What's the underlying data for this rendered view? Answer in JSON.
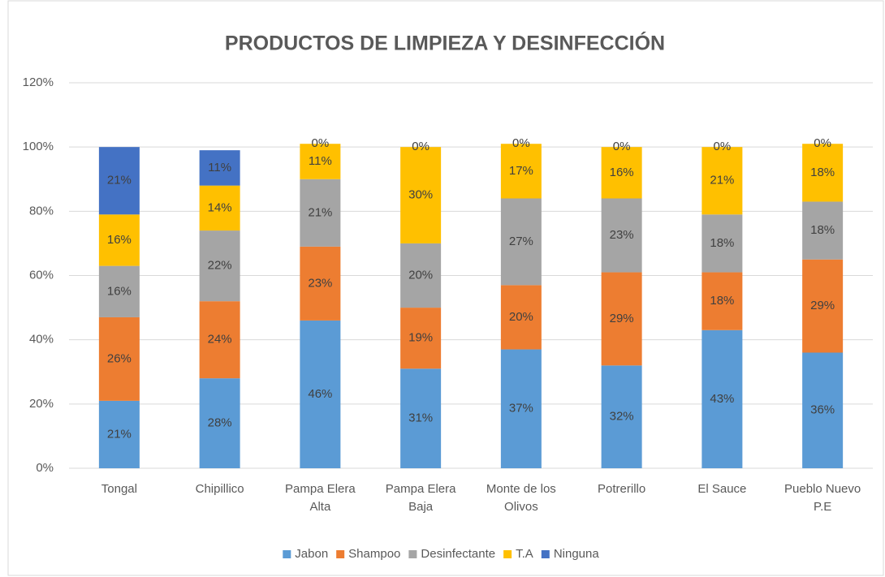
{
  "chart_data": {
    "type": "stacked_bar",
    "title": "PRODUCTOS DE LIMPIEZA Y DESINFECCIÓN",
    "categories": [
      "Tongal",
      "Chipillico",
      "Pampa Elera Alta",
      "Pampa Elera Baja",
      "Monte de los Olivos",
      "Potrerillo",
      "El Sauce",
      "Pueblo Nuevo P.E"
    ],
    "series": [
      {
        "name": "Jabon",
        "color": "#5b9bd5",
        "values": [
          21,
          28,
          46,
          31,
          37,
          32,
          43,
          36
        ],
        "value_labels": [
          "21%",
          "28%",
          "46%",
          "31%",
          "37%",
          "32%",
          "43%",
          "36%"
        ]
      },
      {
        "name": "Shampoo",
        "color": "#ed7d31",
        "values": [
          26,
          24,
          23,
          19,
          20,
          29,
          18,
          29
        ],
        "value_labels": [
          "26%",
          "24%",
          "23%",
          "19%",
          "20%",
          "29%",
          "18%",
          "29%"
        ]
      },
      {
        "name": "Desinfectante",
        "color": "#a5a5a5",
        "values": [
          16,
          22,
          21,
          20,
          27,
          23,
          18,
          18
        ],
        "value_labels": [
          "16%",
          "22%",
          "21%",
          "20%",
          "27%",
          "23%",
          "18%",
          "18%"
        ]
      },
      {
        "name": "T.A",
        "color": "#ffc000",
        "values": [
          16,
          14,
          11,
          30,
          17,
          16,
          21,
          18
        ],
        "value_labels": [
          "16%",
          "14%",
          "11%",
          "30%",
          "17%",
          "16%",
          "21%",
          "18%"
        ]
      },
      {
        "name": "Ninguna",
        "color": "#4472c4",
        "values": [
          21,
          11,
          0,
          0,
          0,
          0,
          0,
          0
        ],
        "value_labels": [
          "21%",
          "11%",
          "0%",
          "0%",
          "0%",
          "0%",
          "0%",
          "0%"
        ]
      }
    ],
    "ylim": [
      0,
      120
    ],
    "yticks": [
      {
        "value": 0,
        "label": "0%"
      },
      {
        "value": 20,
        "label": "20%"
      },
      {
        "value": 40,
        "label": "40%"
      },
      {
        "value": 60,
        "label": "60%"
      },
      {
        "value": 80,
        "label": "80%"
      },
      {
        "value": 100,
        "label": "100%"
      },
      {
        "value": 120,
        "label": "120%"
      }
    ],
    "grid": true,
    "legend": "bottom"
  }
}
